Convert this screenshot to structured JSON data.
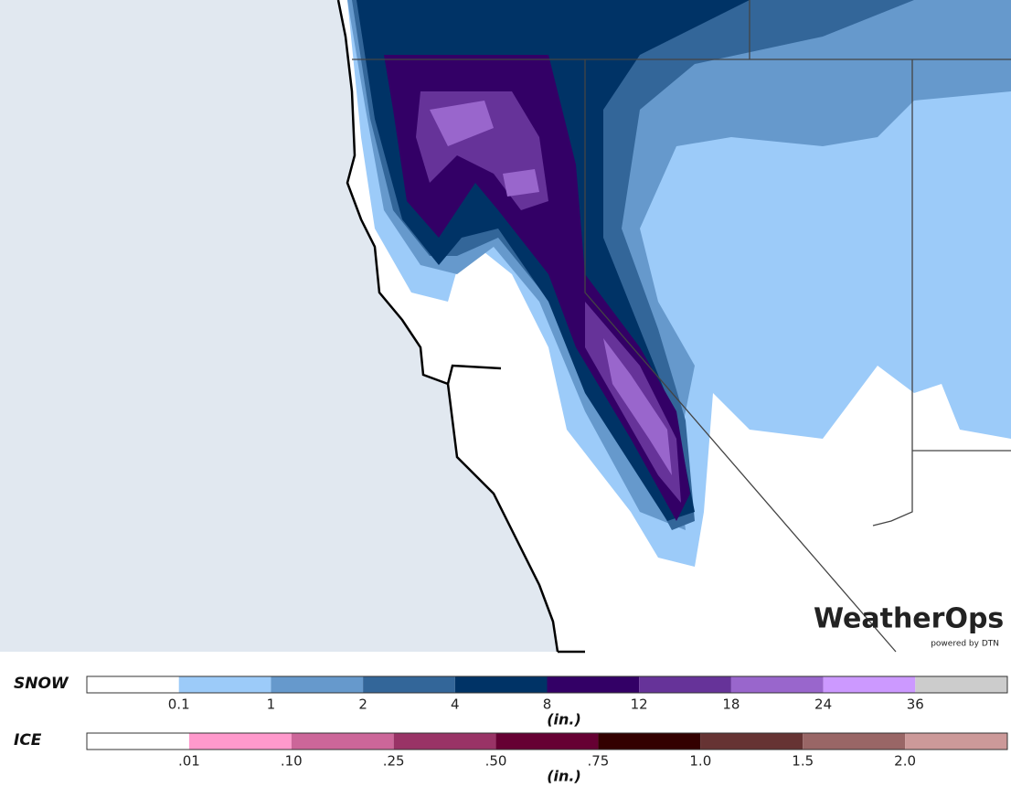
{
  "logo": {
    "name": "WeatherOps",
    "tagline": "powered by DTN"
  },
  "legends": [
    {
      "title": "SNOW",
      "unit": "(in.)",
      "colors": [
        "#ffffff",
        "#9ccbf9",
        "#6699cc",
        "#336699",
        "#003366",
        "#330066",
        "#663399",
        "#9966cc",
        "#cc99ff",
        "#cccccc"
      ],
      "labels": [
        "0.1",
        "1",
        "2",
        "4",
        "8",
        "12",
        "18",
        "24",
        "36"
      ]
    },
    {
      "title": "ICE",
      "unit": "(in.)",
      "colors": [
        "#ffffff",
        "#ff99cc",
        "#cc6699",
        "#993366",
        "#660033",
        "#330000",
        "#663333",
        "#996666",
        "#cc9999"
      ],
      "labels": [
        ".01",
        ".10",
        ".25",
        ".50",
        ".75",
        "1.0",
        "1.5",
        "2.0"
      ]
    }
  ]
}
